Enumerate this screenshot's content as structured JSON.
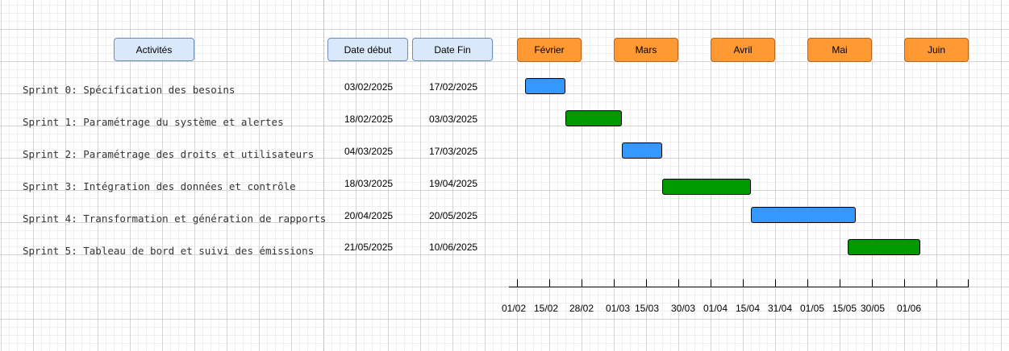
{
  "headers": {
    "activities": "Activités",
    "start": "Date début",
    "end": "Date Fin"
  },
  "months": [
    "Février",
    "Mars",
    "Avril",
    "Mai",
    "Juin"
  ],
  "sprints": [
    {
      "name": "Sprint 0: Spécification des besoins",
      "start": "03/02/2025",
      "end": "17/02/2025",
      "color": "#3399ff"
    },
    {
      "name": "Sprint 1: Paramétrage du système et alertes",
      "start": "18/02/2025",
      "end": "03/03/2025",
      "color": "#009900"
    },
    {
      "name": "Sprint 2: Paramétrage des droits et utilisateurs",
      "start": "04/03/2025",
      "end": "17/03/2025",
      "color": "#3399ff"
    },
    {
      "name": "Sprint 3: Intégration des données et contrôle",
      "start": "18/03/2025",
      "end": "19/04/2025",
      "color": "#009900"
    },
    {
      "name": "Sprint 4: Transformation et génération de rapports",
      "start": "20/04/2025",
      "end": "20/05/2025",
      "color": "#3399ff"
    },
    {
      "name": "Sprint 5: Tableau de bord et suivi des émissions",
      "start": "21/05/2025",
      "end": "10/06/2025",
      "color": "#009900"
    }
  ],
  "timeline_labels": [
    "01/02",
    "15/02",
    "28/02",
    "01/03",
    "15/03",
    "30/03",
    "01/04",
    "15/04",
    "31/04",
    "01/05",
    "15/05",
    "30/05",
    "01/06"
  ]
}
